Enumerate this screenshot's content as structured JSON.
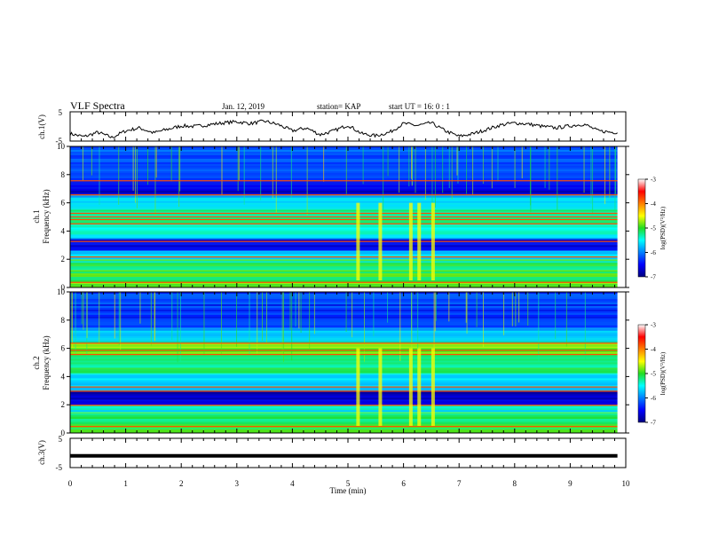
{
  "header": {
    "title": "VLF Spectra",
    "date": "Jan. 12, 2019",
    "station": "station= KAP",
    "start": "start UT =  16: 0  : 1"
  },
  "chart_data": [
    {
      "type": "line",
      "panel": "ch1-voltage",
      "ylabel": "ch.1(V)",
      "ylim": [
        -5,
        5
      ],
      "y_ticks": [
        "5",
        "-5"
      ],
      "x": [
        0,
        0.25,
        0.5,
        0.75,
        1.0,
        1.25,
        1.5,
        1.75,
        2.0,
        2.25,
        2.5,
        2.75,
        3.0,
        3.25,
        3.5,
        3.75,
        4.0,
        4.25,
        4.5,
        4.75,
        5.0,
        5.25,
        5.5,
        5.75,
        6.0,
        6.25,
        6.5,
        6.75,
        7.0,
        7.25,
        7.5,
        7.75,
        8.0,
        8.25,
        8.5,
        8.75,
        9.0,
        9.25,
        9.5,
        9.75,
        9.85
      ],
      "values": [
        -2.5,
        -3.5,
        -2.0,
        -3.8,
        -1.5,
        -0.5,
        -2.2,
        -1.0,
        0.2,
        0.0,
        0.6,
        1.2,
        1.6,
        1.0,
        1.8,
        0.6,
        -1.5,
        -0.5,
        -2.8,
        -1.5,
        0.5,
        -2.5,
        -3.2,
        -2.0,
        1.0,
        0.3,
        1.2,
        -1.5,
        -3.4,
        -2.5,
        -1.0,
        0.5,
        1.2,
        0.8,
        0.0,
        -0.5,
        0.2,
        0.8,
        -1.5,
        -2.0,
        -2.0
      ]
    },
    {
      "type": "heatmap",
      "panel": "ch1-spectrogram",
      "ylabel": "ch.1",
      "ylabel2": "Frequency (kHz)",
      "ylim": [
        0,
        10
      ],
      "y_ticks": [
        "0",
        "2",
        "4",
        "6",
        "8",
        "10"
      ],
      "colorbar": {
        "label": "log(PSD)(V²/Hz)",
        "range": [
          -7,
          -3
        ],
        "ticks": [
          "-3",
          "-4",
          "-5",
          "-6",
          "-7"
        ]
      },
      "bands": [
        {
          "from": 0.0,
          "to": 0.4,
          "level": -4.8
        },
        {
          "from": 0.4,
          "to": 1.2,
          "level": -5.0
        },
        {
          "from": 1.2,
          "to": 2.0,
          "level": -5.2
        },
        {
          "from": 2.0,
          "to": 2.6,
          "level": -5.6
        },
        {
          "from": 2.6,
          "to": 3.4,
          "level": -6.6
        },
        {
          "from": 3.4,
          "to": 4.5,
          "level": -5.5
        },
        {
          "from": 4.5,
          "to": 5.6,
          "level": -5.3
        },
        {
          "from": 5.6,
          "to": 6.6,
          "level": -5.7
        },
        {
          "from": 6.6,
          "to": 7.6,
          "level": -6.6
        },
        {
          "from": 7.6,
          "to": 10.0,
          "level": -6.2
        }
      ],
      "lines": [
        0.4,
        2.2,
        3.3,
        4.55,
        4.85,
        5.05,
        5.3,
        6.6,
        7.6
      ],
      "bursts": [
        5.15,
        5.55,
        6.1,
        6.25,
        6.5
      ]
    },
    {
      "type": "heatmap",
      "panel": "ch2-spectrogram",
      "ylabel": "ch.2",
      "ylabel2": "Frequency (kHz)",
      "ylim": [
        0,
        10
      ],
      "y_ticks": [
        "0",
        "2",
        "4",
        "6",
        "8",
        "10"
      ],
      "colorbar": {
        "label": "log(PSD)(V²/Hz)",
        "range": [
          -7,
          -3
        ],
        "ticks": [
          "-3",
          "-4",
          "-5",
          "-6",
          "-7"
        ]
      },
      "bands": [
        {
          "from": 0.0,
          "to": 0.5,
          "level": -4.9
        },
        {
          "from": 0.5,
          "to": 1.4,
          "level": -5.1
        },
        {
          "from": 1.4,
          "to": 2.0,
          "level": -5.5
        },
        {
          "from": 2.0,
          "to": 3.0,
          "level": -6.7
        },
        {
          "from": 3.0,
          "to": 4.2,
          "level": -5.6
        },
        {
          "from": 4.2,
          "to": 5.6,
          "level": -5.2
        },
        {
          "from": 5.6,
          "to": 6.4,
          "level": -4.9
        },
        {
          "from": 6.4,
          "to": 7.4,
          "level": -5.8
        },
        {
          "from": 7.4,
          "to": 10.0,
          "level": -6.3
        }
      ],
      "lines": [
        0.5,
        2.0,
        3.0,
        3.3,
        5.6,
        5.9,
        6.4
      ],
      "bursts": [
        5.15,
        5.55,
        6.1,
        6.25,
        6.5
      ]
    },
    {
      "type": "line",
      "panel": "ch3-voltage",
      "ylabel": "ch.3(V)",
      "ylim": [
        -5,
        5
      ],
      "y_ticks": [
        "5",
        "-5"
      ],
      "x": [
        0,
        9.85
      ],
      "values": [
        -1.0,
        -1.0
      ]
    }
  ],
  "x_axis": {
    "label": "Time (min)",
    "xlim": [
      0,
      10
    ],
    "ticks": [
      "0",
      "1",
      "2",
      "3",
      "4",
      "5",
      "6",
      "7",
      "8",
      "9",
      "10"
    ]
  }
}
